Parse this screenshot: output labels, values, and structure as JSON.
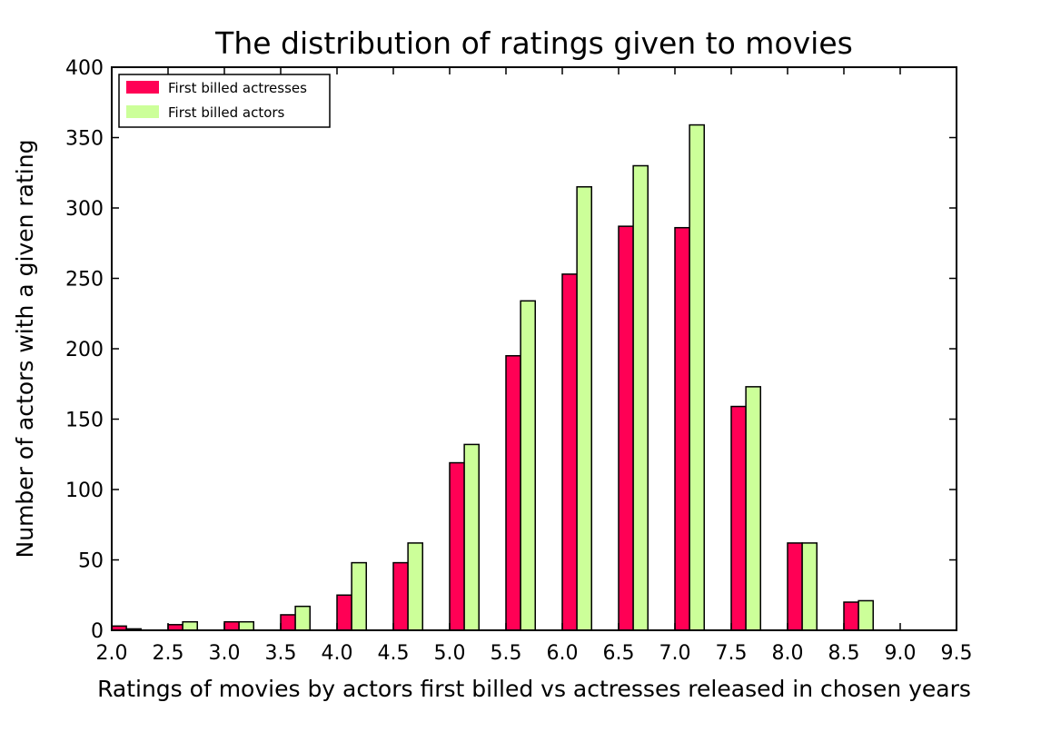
{
  "chart_data": {
    "type": "bar",
    "title": "The distribution of ratings given to movies",
    "xlabel": "Ratings of movies by actors first billed vs actresses released in chosen years",
    "ylabel": "Number of actors with a given rating",
    "categories": [
      "2.0",
      "2.5",
      "3.0",
      "3.5",
      "4.0",
      "4.5",
      "5.0",
      "5.5",
      "6.0",
      "6.5",
      "7.0",
      "7.5",
      "8.0",
      "8.5",
      "9.0",
      "9.5"
    ],
    "x_ticks": [
      "2.0",
      "2.5",
      "3.0",
      "3.5",
      "4.0",
      "4.5",
      "5.0",
      "5.5",
      "6.0",
      "6.5",
      "7.0",
      "7.5",
      "8.0",
      "8.5",
      "9.0",
      "9.5"
    ],
    "y_ticks": [
      "0",
      "50",
      "100",
      "150",
      "200",
      "250",
      "300",
      "350",
      "400"
    ],
    "ylim": [
      0,
      400
    ],
    "xlim": [
      2.0,
      9.5
    ],
    "grid": false,
    "legend_position": "top-left",
    "series": [
      {
        "name": "First billed actresses",
        "color": "#ff0055",
        "values": [
          3,
          4,
          6,
          11,
          25,
          48,
          119,
          195,
          253,
          287,
          286,
          159,
          62,
          20,
          0,
          0
        ]
      },
      {
        "name": "First billed actors",
        "color": "#ccff99",
        "values": [
          1,
          6,
          6,
          17,
          48,
          62,
          132,
          234,
          315,
          330,
          359,
          173,
          62,
          21,
          0,
          0
        ]
      }
    ]
  }
}
